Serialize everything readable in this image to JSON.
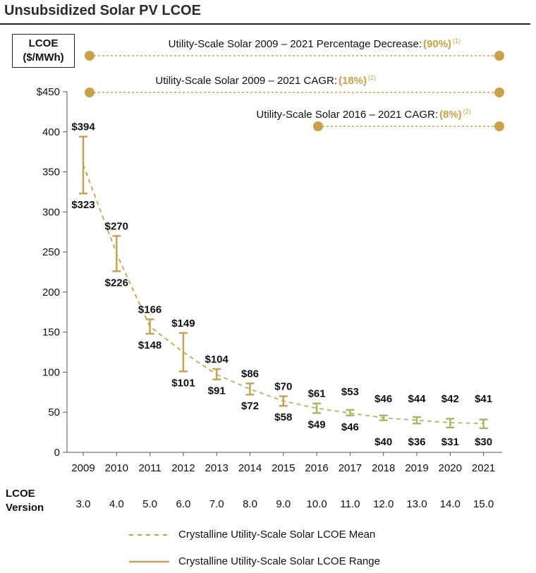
{
  "title": "Unsubsidized Solar PV LCOE",
  "y_label_line1": "LCOE",
  "y_label_line2": "($/MWh)",
  "version_label_line1": "LCOE",
  "version_label_line2": "Version",
  "versions": [
    "3.0",
    "4.0",
    "5.0",
    "6.0",
    "7.0",
    "8.0",
    "9.0",
    "10.0",
    "11.0",
    "12.0",
    "13.0",
    "14.0",
    "15.0"
  ],
  "annotations": [
    {
      "label": "Utility-Scale Solar 2009 – 2021 Percentage Decrease: ",
      "value": "(90%)",
      "footnote": "(1)"
    },
    {
      "label": "Utility-Scale Solar 2009 – 2021 CAGR: ",
      "value": "(18%)",
      "footnote": "(2)"
    },
    {
      "label": "Utility-Scale Solar 2016 – 2021 CAGR: ",
      "value": "(8%)",
      "footnote": "(2)"
    }
  ],
  "legend": {
    "mean": "Crystalline Utility-Scale Solar LCOE Mean",
    "range": "Crystalline Utility-Scale Solar LCOE Range"
  },
  "colors": {
    "range": "#c2a45a",
    "mean": "#c9a14a",
    "mean_late": "#a8b86a",
    "dot": "#c9a14a"
  },
  "chart_data": {
    "type": "line",
    "title": "Unsubsidized Solar PV LCOE",
    "ylabel": "LCOE ($/MWh)",
    "xlabel": "",
    "ylim": [
      0,
      450
    ],
    "yticks": [
      0,
      50,
      100,
      150,
      200,
      250,
      300,
      350,
      400,
      450
    ],
    "ytick_labels": [
      "0",
      "50",
      "100",
      "150",
      "200",
      "250",
      "300",
      "350",
      "400",
      "$450"
    ],
    "categories": [
      "2009",
      "2010",
      "2011",
      "2012",
      "2013",
      "2014",
      "2015",
      "2016",
      "2017",
      "2018",
      "2019",
      "2020",
      "2021"
    ],
    "high": [
      394,
      270,
      166,
      149,
      104,
      86,
      70,
      61,
      53,
      46,
      44,
      42,
      41
    ],
    "low": [
      323,
      226,
      148,
      101,
      91,
      72,
      58,
      49,
      46,
      40,
      36,
      31,
      30
    ],
    "high_labels": [
      "$394",
      "$270",
      "$166",
      "$149",
      "$104",
      "$86",
      "$70",
      "$61",
      "$53",
      "$46",
      "$44",
      "$42",
      "$41"
    ],
    "low_labels": [
      "$323",
      "$226",
      "$148",
      "$101",
      "$91",
      "$72",
      "$58",
      "$49",
      "$46",
      "$40",
      "$36",
      "$31",
      "$30"
    ],
    "mean": [
      359,
      248,
      157,
      125,
      97,
      79,
      64,
      55,
      49,
      43,
      40,
      37,
      36
    ]
  }
}
